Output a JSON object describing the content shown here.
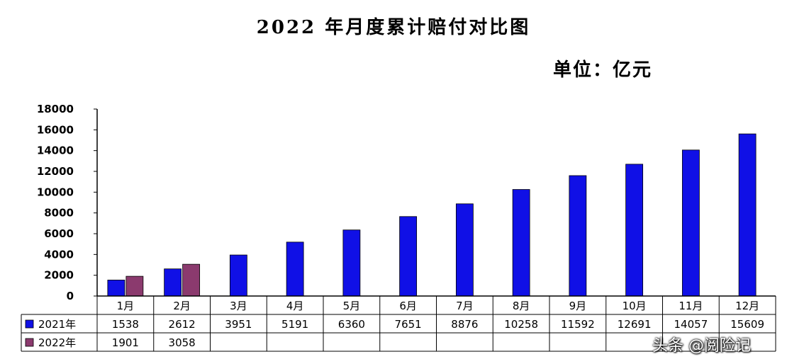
{
  "title": "2022 年月度累计赔付对比图",
  "unit_label": "单位：亿元",
  "watermark": "头条 @阅险记",
  "colors": {
    "series_2021": "#1010e6",
    "series_2022": "#8b3a6e",
    "axis": "#000000",
    "table_border": "#000000"
  },
  "chart_data": {
    "type": "bar",
    "title": "2022 年月度累计赔付对比图",
    "ylabel": "",
    "xlabel": "",
    "ylim": [
      0,
      18000
    ],
    "yticks": [
      0,
      2000,
      4000,
      6000,
      8000,
      10000,
      12000,
      14000,
      16000,
      18000
    ],
    "categories": [
      "1月",
      "2月",
      "3月",
      "4月",
      "5月",
      "6月",
      "7月",
      "8月",
      "9月",
      "10月",
      "11月",
      "12月"
    ],
    "series": [
      {
        "name": "2021年",
        "color": "#1010e6",
        "values": [
          1538,
          2612,
          3951,
          5191,
          6360,
          7651,
          8876,
          10258,
          11592,
          12691,
          14057,
          15609
        ]
      },
      {
        "name": "2022年",
        "color": "#8b3a6e",
        "values": [
          1901,
          3058,
          null,
          null,
          null,
          null,
          null,
          null,
          null,
          null,
          null,
          null
        ]
      }
    ],
    "grid": false,
    "legend": "data-table"
  }
}
